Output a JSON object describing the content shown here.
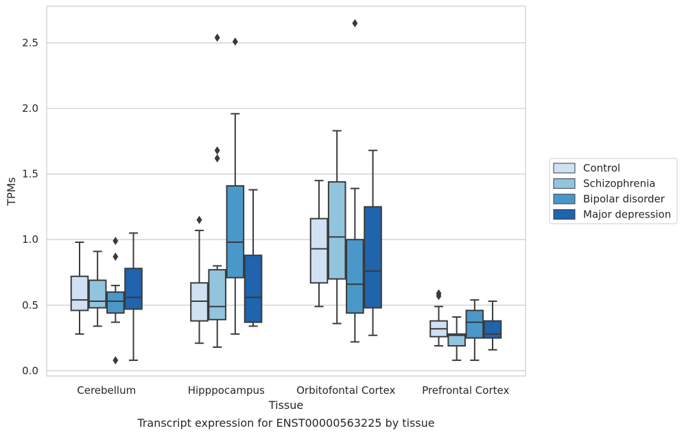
{
  "chart_data": {
    "type": "box",
    "caption": "Transcript expression for ENST00000563225 by tissue",
    "xlabel": "Tissue",
    "ylabel": "TPMs",
    "ylim": [
      -0.04,
      2.78
    ],
    "yticks": [
      0.0,
      0.5,
      1.0,
      1.5,
      2.0,
      2.5
    ],
    "ytick_labels": [
      "0.0",
      "0.5",
      "1.0",
      "1.5",
      "2.0",
      "2.5"
    ],
    "grid": "horizontal",
    "legend_position": "right",
    "categories": [
      "Cerebellum",
      "Hipppocampus",
      "Orbitofontal Cortex",
      "Prefrontal Cortex"
    ],
    "series": [
      {
        "name": "Control",
        "color": "#cfe1f2",
        "boxes": [
          {
            "whislo": 0.28,
            "q1": 0.46,
            "med": 0.54,
            "q3": 0.72,
            "whishi": 0.98,
            "fliers": []
          },
          {
            "whislo": 0.21,
            "q1": 0.38,
            "med": 0.53,
            "q3": 0.67,
            "whishi": 1.07,
            "fliers": [
              1.15
            ]
          },
          {
            "whislo": 0.49,
            "q1": 0.67,
            "med": 0.93,
            "q3": 1.16,
            "whishi": 1.45,
            "fliers": []
          },
          {
            "whislo": 0.19,
            "q1": 0.26,
            "med": 0.32,
            "q3": 0.38,
            "whishi": 0.49,
            "fliers": [
              0.57,
              0.59
            ]
          }
        ]
      },
      {
        "name": "Schizophrenia",
        "color": "#93c4de",
        "boxes": [
          {
            "whislo": 0.34,
            "q1": 0.48,
            "med": 0.53,
            "q3": 0.69,
            "whishi": 0.91,
            "fliers": []
          },
          {
            "whislo": 0.18,
            "q1": 0.39,
            "med": 0.49,
            "q3": 0.77,
            "whishi": 0.8,
            "fliers": [
              1.62,
              1.68,
              2.54
            ]
          },
          {
            "whislo": 0.36,
            "q1": 0.7,
            "med": 1.02,
            "q3": 1.44,
            "whishi": 1.83,
            "fliers": []
          },
          {
            "whislo": 0.08,
            "q1": 0.19,
            "med": 0.27,
            "q3": 0.28,
            "whishi": 0.41,
            "fliers": []
          }
        ]
      },
      {
        "name": "Bipolar disorder",
        "color": "#4a98c9",
        "boxes": [
          {
            "whislo": 0.37,
            "q1": 0.44,
            "med": 0.53,
            "q3": 0.6,
            "whishi": 0.65,
            "fliers": [
              0.08,
              0.87,
              0.99
            ]
          },
          {
            "whislo": 0.28,
            "q1": 0.71,
            "med": 0.98,
            "q3": 1.41,
            "whishi": 1.96,
            "fliers": [
              2.51
            ]
          },
          {
            "whislo": 0.22,
            "q1": 0.44,
            "med": 0.66,
            "q3": 1.0,
            "whishi": 1.39,
            "fliers": [
              2.65
            ]
          },
          {
            "whislo": 0.08,
            "q1": 0.25,
            "med": 0.37,
            "q3": 0.46,
            "whishi": 0.54,
            "fliers": []
          }
        ]
      },
      {
        "name": "Major depression",
        "color": "#1f64ad",
        "boxes": [
          {
            "whislo": 0.08,
            "q1": 0.47,
            "med": 0.56,
            "q3": 0.78,
            "whishi": 1.05,
            "fliers": []
          },
          {
            "whislo": 0.34,
            "q1": 0.37,
            "med": 0.56,
            "q3": 0.88,
            "whishi": 1.38,
            "fliers": []
          },
          {
            "whislo": 0.27,
            "q1": 0.48,
            "med": 0.76,
            "q3": 1.25,
            "whishi": 1.68,
            "fliers": []
          },
          {
            "whislo": 0.16,
            "q1": 0.25,
            "med": 0.28,
            "q3": 0.38,
            "whishi": 0.53,
            "fliers": []
          }
        ]
      }
    ],
    "colors": {
      "grid": "#cccccc",
      "frame": "#cccccc",
      "edge": "#3a3a3a"
    }
  }
}
